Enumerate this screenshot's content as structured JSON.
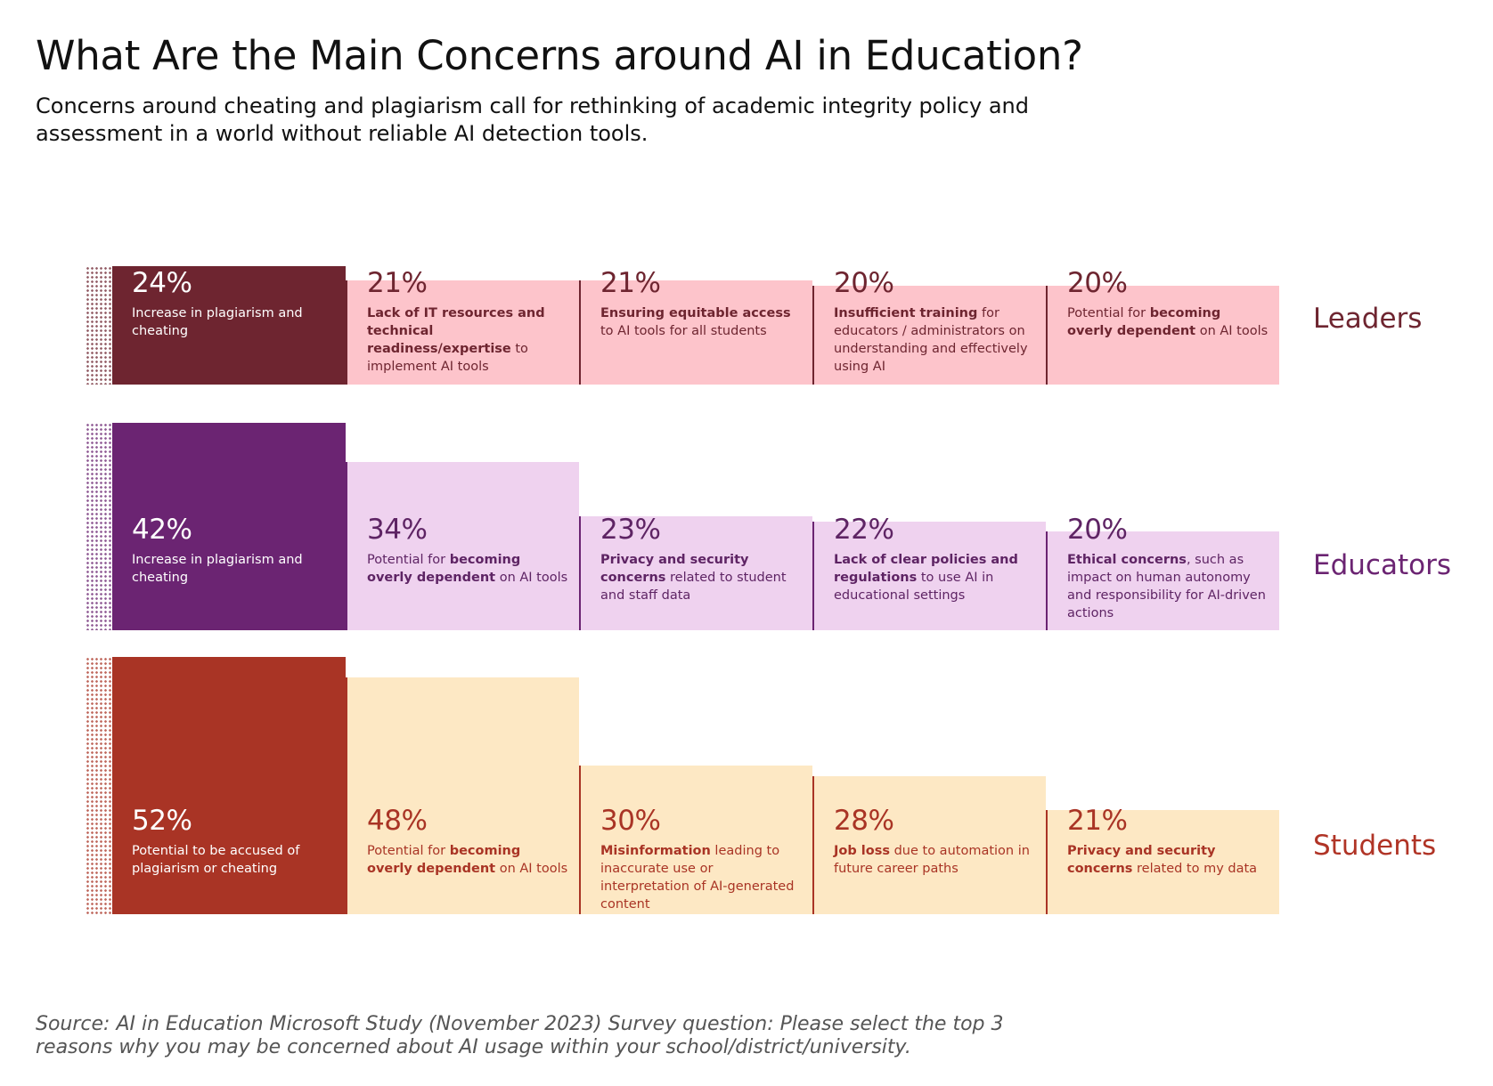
{
  "title": "What Are the Main Concerns around AI in Education?",
  "subtitle": "Concerns around cheating and plagiarism call for rethinking of academic integrity policy and assessment in a world without reliable AI detection tools.",
  "source": "Source: AI in Education Microsoft Study (November 2023) Survey question: Please select the top 3 reasons why you may be concerned about AI usage within your school/district/university.",
  "chart_data": {
    "type": "bar",
    "value_unit": "%",
    "groups": [
      {
        "name": "Leaders",
        "label_color": "#6e2530",
        "accent_color": "#6e2530",
        "light_color": "#fdc4cb",
        "text_color": "#6e2530",
        "items": [
          {
            "value": 24,
            "label": "24%",
            "desc": [
              {
                "t": "Increase in plagiarism and cheating",
                "b": false
              }
            ]
          },
          {
            "value": 21,
            "label": "21%",
            "desc": [
              {
                "t": "Lack of IT resources and technical readiness/expertise",
                "b": true
              },
              {
                "t": " to implement AI tools",
                "b": false
              }
            ]
          },
          {
            "value": 21,
            "label": "21%",
            "desc": [
              {
                "t": "Ensuring equitable access",
                "b": true
              },
              {
                "t": " to AI tools for all students",
                "b": false
              }
            ]
          },
          {
            "value": 20,
            "label": "20%",
            "desc": [
              {
                "t": "Insufficient training",
                "b": true
              },
              {
                "t": " for educators / administrators on understanding and effectively using AI",
                "b": false
              }
            ]
          },
          {
            "value": 20,
            "label": "20%",
            "desc": [
              {
                "t": "Potential for ",
                "b": false
              },
              {
                "t": "becoming overly dependent",
                "b": true
              },
              {
                "t": " on AI tools",
                "b": false
              }
            ]
          }
        ]
      },
      {
        "name": "Educators",
        "label_color": "#6b2472",
        "accent_color": "#6b2472",
        "light_color": "#efd2ef",
        "text_color": "#5e2464",
        "items": [
          {
            "value": 42,
            "label": "42%",
            "desc": [
              {
                "t": "Increase in plagiarism and cheating",
                "b": false
              }
            ]
          },
          {
            "value": 34,
            "label": "34%",
            "desc": [
              {
                "t": "Potential for ",
                "b": false
              },
              {
                "t": "becoming overly dependent",
                "b": true
              },
              {
                "t": " on AI tools",
                "b": false
              }
            ]
          },
          {
            "value": 23,
            "label": "23%",
            "desc": [
              {
                "t": "Privacy and security concerns",
                "b": true
              },
              {
                "t": " related to student and staff data",
                "b": false
              }
            ]
          },
          {
            "value": 22,
            "label": "22%",
            "desc": [
              {
                "t": "Lack of clear policies and regulations",
                "b": true
              },
              {
                "t": " to use AI in educational settings",
                "b": false
              }
            ]
          },
          {
            "value": 20,
            "label": "20%",
            "desc": [
              {
                "t": "Ethical concerns",
                "b": true
              },
              {
                "t": ", such as impact on human autonomy and responsibility for AI-driven actions",
                "b": false
              }
            ]
          }
        ]
      },
      {
        "name": "Students",
        "label_color": "#b03426",
        "accent_color": "#a93425",
        "light_color": "#fde8c4",
        "text_color": "#a93425",
        "items": [
          {
            "value": 52,
            "label": "52%",
            "desc": [
              {
                "t": "Potential to be accused of plagiarism or cheating",
                "b": false
              }
            ]
          },
          {
            "value": 48,
            "label": "48%",
            "desc": [
              {
                "t": "Potential for ",
                "b": false
              },
              {
                "t": "becoming overly dependent",
                "b": true
              },
              {
                "t": " on AI tools",
                "b": false
              }
            ]
          },
          {
            "value": 30,
            "label": "30%",
            "desc": [
              {
                "t": "Misinformation",
                "b": true
              },
              {
                "t": " leading to inaccurate use or interpretation of AI-generated content",
                "b": false
              }
            ]
          },
          {
            "value": 28,
            "label": "28%",
            "desc": [
              {
                "t": "Job loss",
                "b": true
              },
              {
                "t": " due to automation in future career paths",
                "b": false
              }
            ]
          },
          {
            "value": 21,
            "label": "21%",
            "desc": [
              {
                "t": "Privacy and security concerns",
                "b": true
              },
              {
                "t": " related to my data",
                "b": false
              }
            ]
          }
        ]
      }
    ]
  }
}
